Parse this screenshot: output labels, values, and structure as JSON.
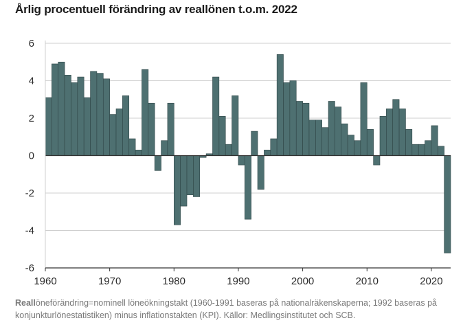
{
  "title": "Årlig procentuell förändring av reallönen t.o.m. 2022",
  "footnote_bold": "Reall",
  "footnote_rest": "öneförändring=nominell löneökningstakt (1960-1991 baseras på nationalräkenskaperna; 1992 baseras på konjunkturlönestatistiken) minus inflationstakten (KPI). Källor: Medlingsinstitutet och SCB.",
  "colors": {
    "bar": "#4e7071",
    "bar_edge": "#2f4546",
    "grid": "#cfcfcf",
    "axis": "#333333"
  },
  "chart_data": {
    "type": "bar",
    "title": "Årlig procentuell förändring av reallönen t.o.m. 2022",
    "xlabel": "",
    "ylabel": "",
    "ylim": [
      -6,
      6
    ],
    "yticks": [
      6,
      4,
      2,
      0,
      -2,
      -4,
      -6
    ],
    "xticks": [
      1960,
      1970,
      1980,
      1990,
      2000,
      2010,
      2020
    ],
    "grid": true,
    "x": [
      1960,
      1961,
      1962,
      1963,
      1964,
      1965,
      1966,
      1967,
      1968,
      1969,
      1970,
      1971,
      1972,
      1973,
      1974,
      1975,
      1976,
      1977,
      1978,
      1979,
      1980,
      1981,
      1982,
      1983,
      1984,
      1985,
      1986,
      1987,
      1988,
      1989,
      1990,
      1991,
      1992,
      1993,
      1994,
      1995,
      1996,
      1997,
      1998,
      1999,
      2000,
      2001,
      2002,
      2003,
      2004,
      2005,
      2006,
      2007,
      2008,
      2009,
      2010,
      2011,
      2012,
      2013,
      2014,
      2015,
      2016,
      2017,
      2018,
      2019,
      2020,
      2021,
      2022
    ],
    "values": [
      3.1,
      4.9,
      5.0,
      4.3,
      3.9,
      4.2,
      3.1,
      4.5,
      4.4,
      4.1,
      2.2,
      2.5,
      3.2,
      0.9,
      0.3,
      4.6,
      2.8,
      -0.8,
      0.8,
      2.8,
      -3.7,
      -2.7,
      -2.1,
      -2.2,
      -0.1,
      0.1,
      4.2,
      2.1,
      0.6,
      3.2,
      -0.5,
      -3.4,
      1.3,
      -1.8,
      0.3,
      0.9,
      5.4,
      3.9,
      4.0,
      2.9,
      2.8,
      1.9,
      1.9,
      1.5,
      2.9,
      2.6,
      1.7,
      1.1,
      0.8,
      3.9,
      1.4,
      -0.5,
      2.1,
      2.5,
      3.0,
      2.5,
      1.4,
      0.6,
      0.6,
      0.8,
      1.6,
      0.5,
      -5.2
    ]
  }
}
